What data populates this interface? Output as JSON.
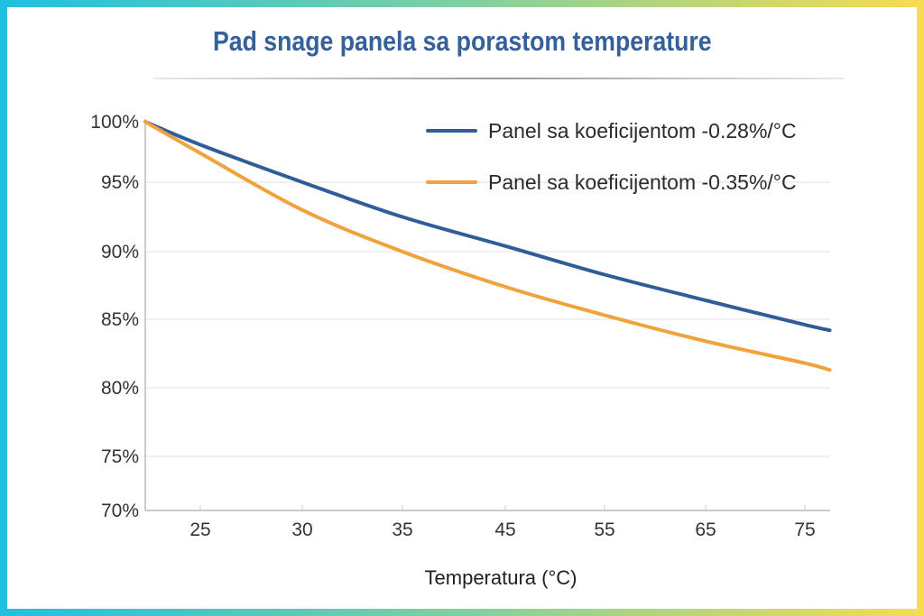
{
  "chart_data": {
    "type": "line",
    "title": "Pad snage panela sa porastom temperature",
    "xlabel": "Temperatura (°C)",
    "ylabel": "",
    "x_ticks": [
      "25",
      "30",
      "35",
      "45",
      "55",
      "65",
      "75"
    ],
    "y_ticks": [
      "100%",
      "95%",
      "90%",
      "85%",
      "80%",
      "75%",
      "70%"
    ],
    "ylim": [
      70,
      100
    ],
    "grid": "horizontal",
    "legend": "top-right",
    "series": [
      {
        "name": "Panel sa koeficijentom -0.28%/°C",
        "color": "#2f5d9a",
        "x": [
          22.3,
          25,
          30,
          35,
          45,
          55,
          65,
          75,
          77.5
        ],
        "y": [
          100,
          98.1,
          95.0,
          92.5,
          90.4,
          88.3,
          86.4,
          84.6,
          84.2
        ]
      },
      {
        "name": "Panel sa koeficijentom -0.35%/°C",
        "color": "#f0a23c",
        "x": [
          22.3,
          25,
          30,
          35,
          45,
          55,
          65,
          75,
          77.5
        ],
        "y": [
          100,
          97.4,
          93.0,
          90.0,
          87.4,
          85.3,
          83.4,
          81.8,
          81.3
        ]
      }
    ]
  }
}
